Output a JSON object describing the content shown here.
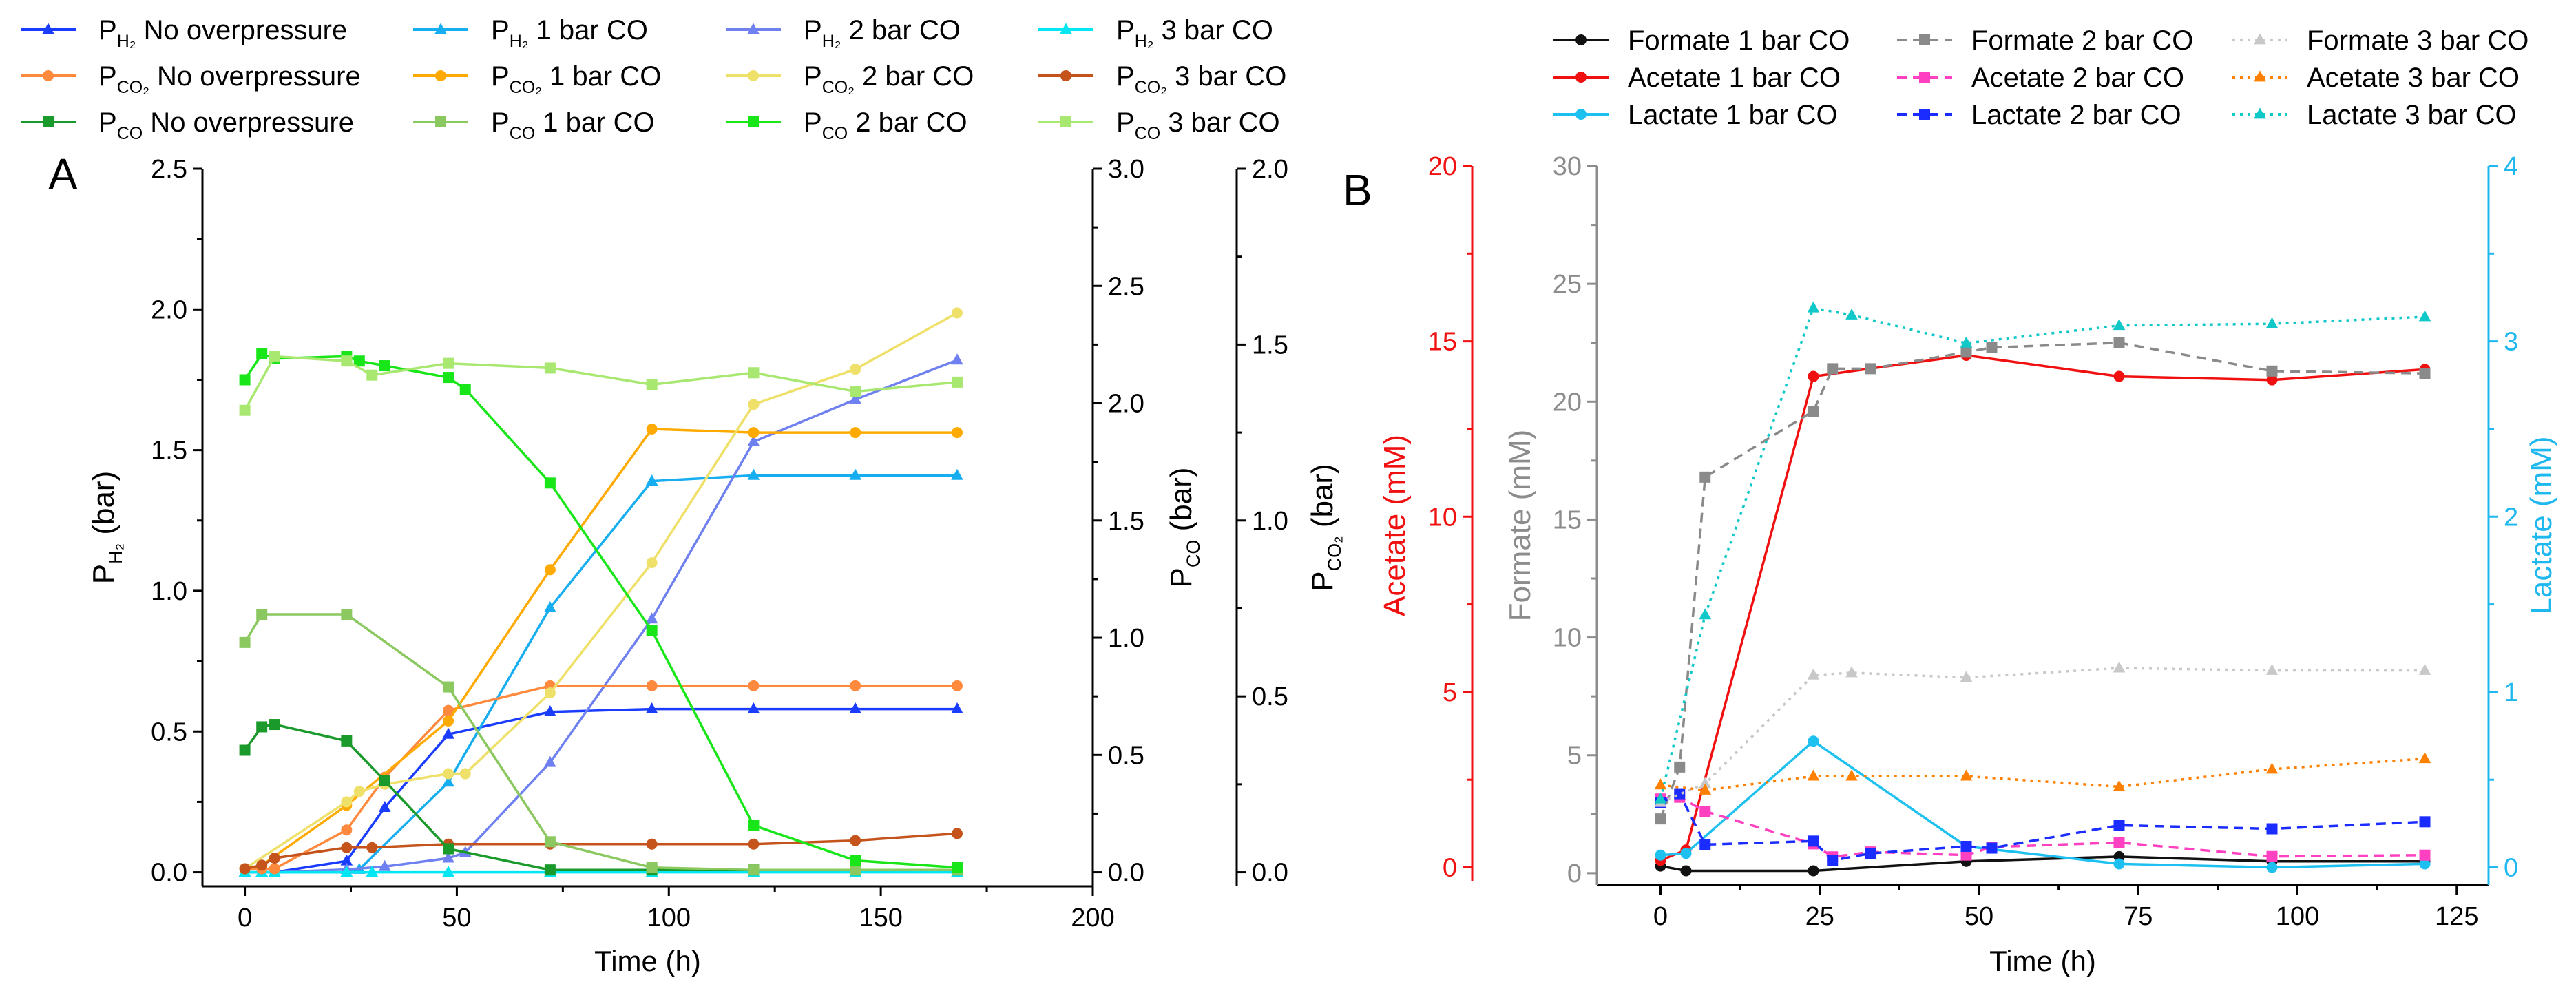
{
  "chart_data": [
    {
      "panel": "A",
      "type": "line",
      "xlabel": "Time (h)",
      "xlim": [
        -10,
        200
      ],
      "xticks": [
        0,
        50,
        100,
        150,
        200
      ],
      "axes": [
        {
          "id": "h2",
          "label": {
            "main": "P",
            "sub": "H2",
            "rest": " (bar)"
          },
          "ylim": [
            -0.05,
            2.5
          ],
          "ticks": [
            0.0,
            0.5,
            1.0,
            1.5,
            2.0,
            2.5
          ],
          "color": "#000000"
        },
        {
          "id": "co",
          "label": {
            "main": "P",
            "sub": "CO",
            "rest": " (bar)"
          },
          "ylim": [
            -0.06,
            3.0
          ],
          "ticks": [
            0.0,
            0.5,
            1.0,
            1.5,
            2.0,
            2.5,
            3.0
          ],
          "color": "#000000"
        },
        {
          "id": "co2",
          "label": {
            "main": "P",
            "sub": "CO2",
            "rest": " (bar)"
          },
          "ylim": [
            -0.04,
            2.0
          ],
          "ticks": [
            0.0,
            0.5,
            1.0,
            1.5,
            2.0
          ],
          "color": "#000000"
        }
      ],
      "series": [
        {
          "label": {
            "main": "P",
            "sub": "H2",
            "rest": " No overpressure"
          },
          "axis": "h2",
          "color": "#1a3cff",
          "marker": "triangle",
          "dash": "solid",
          "x": [
            0,
            4,
            7,
            24,
            33,
            48,
            72,
            96,
            120,
            144,
            168
          ],
          "y": [
            0,
            0,
            0,
            0.04,
            0.23,
            0.49,
            0.57,
            0.58,
            0.58,
            0.58,
            0.58
          ]
        },
        {
          "label": {
            "main": "P",
            "sub": "H2",
            "rest": " 1 bar CO"
          },
          "axis": "h2",
          "color": "#16aef0",
          "marker": "triangle",
          "dash": "solid",
          "x": [
            0,
            4,
            7,
            24,
            27,
            48,
            72,
            96,
            120,
            144,
            168
          ],
          "y": [
            0,
            0,
            0,
            0,
            0.01,
            0.32,
            0.94,
            1.39,
            1.41,
            1.41,
            1.41
          ]
        },
        {
          "label": {
            "main": "P",
            "sub": "H2",
            "rest": " 2 bar CO"
          },
          "axis": "h2",
          "color": "#6f80f0",
          "marker": "triangle",
          "dash": "solid",
          "x": [
            0,
            4,
            7,
            24,
            33,
            48,
            52,
            72,
            96,
            120,
            144,
            168
          ],
          "y": [
            0,
            0,
            0,
            0.01,
            0.02,
            0.05,
            0.07,
            0.39,
            0.9,
            1.53,
            1.68,
            1.82
          ]
        },
        {
          "label": {
            "main": "P",
            "sub": "H2",
            "rest": " 3 bar CO"
          },
          "axis": "h2",
          "color": "#00e6f2",
          "marker": "triangle",
          "dash": "solid",
          "x": [
            0,
            4,
            7,
            24,
            30,
            48,
            72,
            96,
            120,
            144,
            168
          ],
          "y": [
            0,
            0,
            0,
            0,
            0,
            0,
            0,
            0,
            0,
            0,
            0
          ]
        },
        {
          "label": {
            "main": "P",
            "sub": "CO2",
            "rest": " No overpressure"
          },
          "axis": "co2",
          "color": "#ff8a3d",
          "marker": "circle",
          "dash": "solid",
          "x": [
            0,
            4,
            7,
            24,
            33,
            48,
            72,
            96,
            120,
            144,
            168
          ],
          "y": [
            0.01,
            0.01,
            0.01,
            0.12,
            0.27,
            0.46,
            0.53,
            0.53,
            0.53,
            0.53,
            0.53
          ]
        },
        {
          "label": {
            "main": "P",
            "sub": "CO2",
            "rest": " 1 bar CO"
          },
          "axis": "co2",
          "color": "#ffaa00",
          "marker": "circle",
          "dash": "solid",
          "x": [
            0,
            4,
            24,
            48,
            72,
            96,
            120,
            144,
            168
          ],
          "y": [
            0.01,
            0.02,
            0.19,
            0.43,
            0.86,
            1.26,
            1.25,
            1.25,
            1.25
          ]
        },
        {
          "label": {
            "main": "P",
            "sub": "CO2",
            "rest": " 2 bar CO"
          },
          "axis": "co2",
          "color": "#efe06a",
          "marker": "circle",
          "dash": "solid",
          "x": [
            0,
            24,
            27,
            33,
            48,
            52,
            72,
            96,
            120,
            144,
            168
          ],
          "y": [
            0.01,
            0.2,
            0.23,
            0.25,
            0.28,
            0.28,
            0.51,
            0.88,
            1.33,
            1.43,
            1.59
          ]
        },
        {
          "label": {
            "main": "P",
            "sub": "CO2",
            "rest": " 3 bar CO"
          },
          "axis": "co2",
          "color": "#c4531c",
          "marker": "circle",
          "dash": "solid",
          "x": [
            0,
            4,
            7,
            24,
            30,
            48,
            72,
            96,
            120,
            144,
            168
          ],
          "y": [
            0.01,
            0.02,
            0.04,
            0.07,
            0.07,
            0.08,
            0.08,
            0.08,
            0.08,
            0.09,
            0.11
          ]
        },
        {
          "label": {
            "main": "P",
            "sub": "CO",
            "rest": " No overpressure"
          },
          "axis": "co",
          "color": "#1a9a2a",
          "marker": "square",
          "dash": "solid",
          "x": [
            0,
            4,
            7,
            24,
            33,
            48,
            72,
            96,
            120,
            144,
            168
          ],
          "y": [
            0.52,
            0.62,
            0.63,
            0.56,
            0.39,
            0.1,
            0.01,
            0.01,
            0.01,
            0.01,
            0.01
          ]
        },
        {
          "label": {
            "main": "P",
            "sub": "CO",
            "rest": " 1 bar CO"
          },
          "axis": "co",
          "color": "#8cc860",
          "marker": "square",
          "dash": "solid",
          "x": [
            0,
            4,
            24,
            48,
            72,
            96,
            120,
            144,
            168
          ],
          "y": [
            0.98,
            1.1,
            1.1,
            0.79,
            0.13,
            0.02,
            0.01,
            0.01,
            0.01
          ]
        },
        {
          "label": {
            "main": "P",
            "sub": "CO",
            "rest": " 2 bar CO"
          },
          "axis": "co",
          "color": "#19e619",
          "marker": "square",
          "dash": "solid",
          "x": [
            0,
            4,
            7,
            24,
            27,
            33,
            48,
            52,
            72,
            96,
            120,
            144,
            168
          ],
          "y": [
            2.1,
            2.21,
            2.19,
            2.2,
            2.18,
            2.16,
            2.11,
            2.06,
            1.66,
            1.03,
            0.2,
            0.05,
            0.02
          ]
        },
        {
          "label": {
            "main": "P",
            "sub": "CO",
            "rest": " 3 bar CO"
          },
          "axis": "co",
          "color": "#a8e870",
          "marker": "square",
          "dash": "solid",
          "x": [
            0,
            7,
            24,
            30,
            48,
            72,
            96,
            120,
            144,
            168
          ],
          "y": [
            1.97,
            2.2,
            2.18,
            2.12,
            2.17,
            2.15,
            2.08,
            2.13,
            2.05,
            2.09
          ]
        }
      ]
    },
    {
      "panel": "B",
      "type": "line",
      "xlabel": "Time (h)",
      "xlim": [
        -10,
        130
      ],
      "xticks": [
        0,
        25,
        50,
        75,
        100,
        125
      ],
      "axes": [
        {
          "id": "acetate",
          "label": {
            "main": "Acetate (mM)",
            "sub": "",
            "rest": ""
          },
          "ylim": [
            -0.5,
            20
          ],
          "ticks": [
            0,
            5,
            10,
            15,
            20
          ],
          "color": "#f01010"
        },
        {
          "id": "formate",
          "label": {
            "main": "Formate (mM)",
            "sub": "",
            "rest": ""
          },
          "ylim": [
            -0.5,
            30
          ],
          "ticks": [
            0,
            5,
            10,
            15,
            20,
            25,
            30
          ],
          "color": "#8c8c8c"
        },
        {
          "id": "lactate",
          "label": {
            "main": "Lactate (mM)",
            "sub": "",
            "rest": ""
          },
          "ylim": [
            -0.1,
            4
          ],
          "ticks": [
            0,
            1,
            2,
            3,
            4
          ],
          "color": "#1eb8ee"
        }
      ],
      "series": [
        {
          "label": {
            "main": "Formate 1 bar CO",
            "sub": "",
            "rest": ""
          },
          "axis": "formate",
          "color": "#111111",
          "marker": "circle",
          "dash": "solid",
          "x": [
            0,
            4,
            24,
            48,
            72,
            96,
            120
          ],
          "y": [
            0.3,
            0.1,
            0.1,
            0.5,
            0.7,
            0.5,
            0.5
          ]
        },
        {
          "label": {
            "main": "Acetate 1 bar CO",
            "sub": "",
            "rest": ""
          },
          "axis": "acetate",
          "color": "#f01010",
          "marker": "circle",
          "dash": "solid",
          "x": [
            0,
            4,
            24,
            48,
            72,
            96,
            120
          ],
          "y": [
            0.2,
            0.5,
            14.0,
            14.6,
            14.0,
            13.9,
            14.2
          ]
        },
        {
          "label": {
            "main": "Lactate 1 bar CO",
            "sub": "",
            "rest": ""
          },
          "axis": "lactate",
          "color": "#1ec0f0",
          "marker": "circle",
          "dash": "solid",
          "x": [
            0,
            4,
            24,
            48,
            72,
            96,
            120
          ],
          "y": [
            0.07,
            0.08,
            0.72,
            0.12,
            0.02,
            0.0,
            0.02
          ]
        },
        {
          "label": {
            "main": "Formate 2 bar CO",
            "sub": "",
            "rest": ""
          },
          "axis": "formate",
          "color": "#8a8a8a",
          "marker": "square",
          "dash": "dashed",
          "x": [
            0,
            3,
            7,
            24,
            27,
            33,
            48,
            52,
            72,
            96,
            120
          ],
          "y": [
            2.3,
            4.5,
            16.8,
            19.6,
            21.4,
            21.4,
            22.1,
            22.3,
            22.5,
            21.3,
            21.2
          ]
        },
        {
          "label": {
            "main": "Acetate 2 bar CO",
            "sub": "",
            "rest": ""
          },
          "axis": "acetate",
          "color": "#ff40c0",
          "marker": "square",
          "dash": "dashed",
          "x": [
            0,
            3,
            7,
            24,
            27,
            33,
            48,
            52,
            72,
            96,
            120
          ],
          "y": [
            1.95,
            2.0,
            1.6,
            0.67,
            0.3,
            0.44,
            0.35,
            0.58,
            0.71,
            0.31,
            0.35
          ]
        },
        {
          "label": {
            "main": "Lactate 2 bar CO",
            "sub": "",
            "rest": ""
          },
          "axis": "lactate",
          "color": "#1a2cff",
          "marker": "square",
          "dash": "dashed",
          "x": [
            0,
            3,
            7,
            24,
            27,
            33,
            48,
            52,
            72,
            96,
            120
          ],
          "y": [
            0.37,
            0.42,
            0.13,
            0.15,
            0.04,
            0.08,
            0.12,
            0.11,
            0.24,
            0.22,
            0.26
          ]
        },
        {
          "label": {
            "main": "Formate 3 bar CO",
            "sub": "",
            "rest": ""
          },
          "axis": "formate",
          "color": "#c8c8c8",
          "marker": "triangle",
          "dash": "dotted",
          "x": [
            0,
            7,
            24,
            30,
            48,
            72,
            96,
            120
          ],
          "y": [
            3.0,
            3.8,
            8.4,
            8.5,
            8.3,
            8.7,
            8.6,
            8.6
          ]
        },
        {
          "label": {
            "main": "Acetate 3 bar CO",
            "sub": "",
            "rest": ""
          },
          "axis": "acetate",
          "color": "#ff8000",
          "marker": "triangle",
          "dash": "dotted",
          "x": [
            0,
            7,
            24,
            30,
            48,
            72,
            96,
            120
          ],
          "y": [
            2.35,
            2.2,
            2.6,
            2.6,
            2.6,
            2.3,
            2.8,
            3.1
          ]
        },
        {
          "label": {
            "main": "Lactate 3 bar CO",
            "sub": "",
            "rest": ""
          },
          "axis": "lactate",
          "color": "#10c8c8",
          "marker": "triangle",
          "dash": "dotted",
          "x": [
            0,
            7,
            24,
            30,
            48,
            72,
            96,
            120
          ],
          "y": [
            0.39,
            1.44,
            3.19,
            3.15,
            2.99,
            3.09,
            3.1,
            3.14
          ]
        }
      ]
    }
  ]
}
